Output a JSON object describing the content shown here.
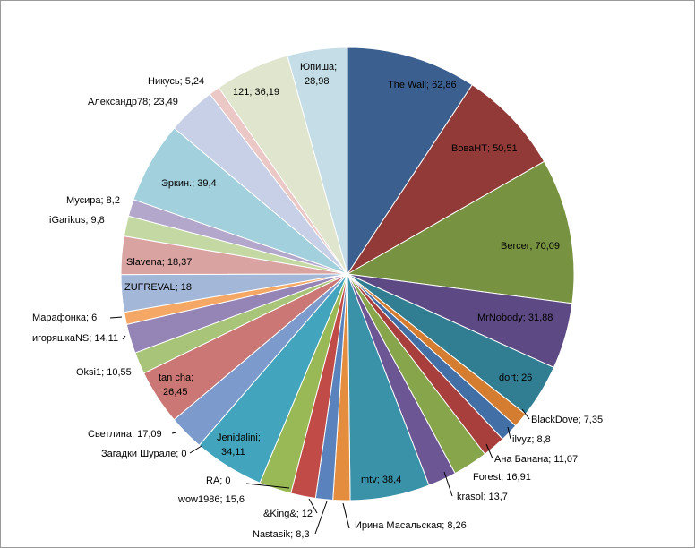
{
  "chart_data": {
    "type": "pie",
    "title": "",
    "slices": [
      {
        "name": "The Wall",
        "value": 62.86,
        "label": "The Wall; 62,86",
        "color": "#3b5f8e"
      },
      {
        "name": "ВоваНТ",
        "value": 50.51,
        "label": "ВоваНТ; 50,51",
        "color": "#923a38"
      },
      {
        "name": "Bercer",
        "value": 70.09,
        "label": "Bercer; 70,09",
        "color": "#779240"
      },
      {
        "name": "MrNobody",
        "value": 31.88,
        "label": "MrNobody; 31,88",
        "color": "#5d4983"
      },
      {
        "name": "dort",
        "value": 26,
        "label": "dort; 26",
        "color": "#317e93"
      },
      {
        "name": "BlackDove",
        "value": 7.35,
        "label": "BlackDove; 7,35",
        "color": "#d47c30"
      },
      {
        "name": "ilvyz",
        "value": 8.8,
        "label": "ilvyz; 8,8",
        "color": "#436fa7"
      },
      {
        "name": "Ана Банана",
        "value": 11.07,
        "label": "Ана Банана; 11,07",
        "color": "#a83f3c"
      },
      {
        "name": "Forest",
        "value": 16.91,
        "label": "Forest; 16,91",
        "color": "#87a64b"
      },
      {
        "name": "krasol",
        "value": 13.7,
        "label": "krasol; 13,7",
        "color": "#6c5694"
      },
      {
        "name": "mtv",
        "value": 38.4,
        "label": "mtv; 38,4",
        "color": "#3a92a8"
      },
      {
        "name": "Ирина Масальская",
        "value": 8.26,
        "label": "Ирина Масальская; 8,26",
        "color": "#e48d3f"
      },
      {
        "name": "Nastasik",
        "value": 8.3,
        "label": "Nastasik; 8,3",
        "color": "#5a82bc"
      },
      {
        "name": "&King&",
        "value": 12,
        "label": "&King&; 12",
        "color": "#c04b47"
      },
      {
        "name": "wow1986",
        "value": 15.6,
        "label": "wow1986; 15,6",
        "color": "#98b955"
      },
      {
        "name": "RA;",
        "value": 0,
        "label": "RA; 0",
        "color": "#7b63a6"
      },
      {
        "name": "Jenidalini",
        "value": 34.11,
        "label": "Jenidalini;\n34,11",
        "color": "#43a5bd"
      },
      {
        "name": "Загадки Шурале",
        "value": 0,
        "label": "Загадки Шурале; 0",
        "color": "#f29c4d"
      },
      {
        "name": "Светлина",
        "value": 17.09,
        "label": "Светлина; 17,09",
        "color": "#7c9acb"
      },
      {
        "name": "tan cha",
        "value": 26.45,
        "label": "tan cha;\n26,45",
        "color": "#ca7775"
      },
      {
        "name": "Oksi1",
        "value": 10.55,
        "label": "Oksi1; 10,55",
        "color": "#a8c479"
      },
      {
        "name": "игоряшкаNS",
        "value": 14.11,
        "label": "игоряшкаNS; 14,11",
        "color": "#9584b6"
      },
      {
        "name": "Марафонка",
        "value": 6,
        "label": "Марафонка; 6",
        "color": "#f5a866"
      },
      {
        "name": "ZUFREVAL",
        "value": 18,
        "label": "ZUFREVAL;  18",
        "color": "#a3b8d9"
      },
      {
        "name": "Slavena",
        "value": 18.37,
        "label": "Slavena; 18,37",
        "color": "#d9a3a2"
      },
      {
        "name": "iGarikus",
        "value": 9.8,
        "label": "iGarikus; 9,8",
        "color": "#c4d8a3"
      },
      {
        "name": "Мусира",
        "value": 8.2,
        "label": "Мусира; 8,2",
        "color": "#b3a8cc"
      },
      {
        "name": "Эркин.",
        "value": 39.4,
        "label": "Эркин.; 39,4",
        "color": "#a2d0dc"
      },
      {
        "name": "Александр78",
        "value": 23.49,
        "label": "Александр78; 23,49",
        "color": "#c7d0e6"
      },
      {
        "name": "Никусь",
        "value": 5.24,
        "label": "Никусь; 5,24",
        "color": "#ebc7c6"
      },
      {
        "name": "121",
        "value": 36.19,
        "label": "121; 36,19",
        "color": "#dfe6cd"
      },
      {
        "name": "Юпиша",
        "value": 28.98,
        "label": "Юпиша;\n28,98",
        "color": "#c4dde6"
      }
    ]
  }
}
